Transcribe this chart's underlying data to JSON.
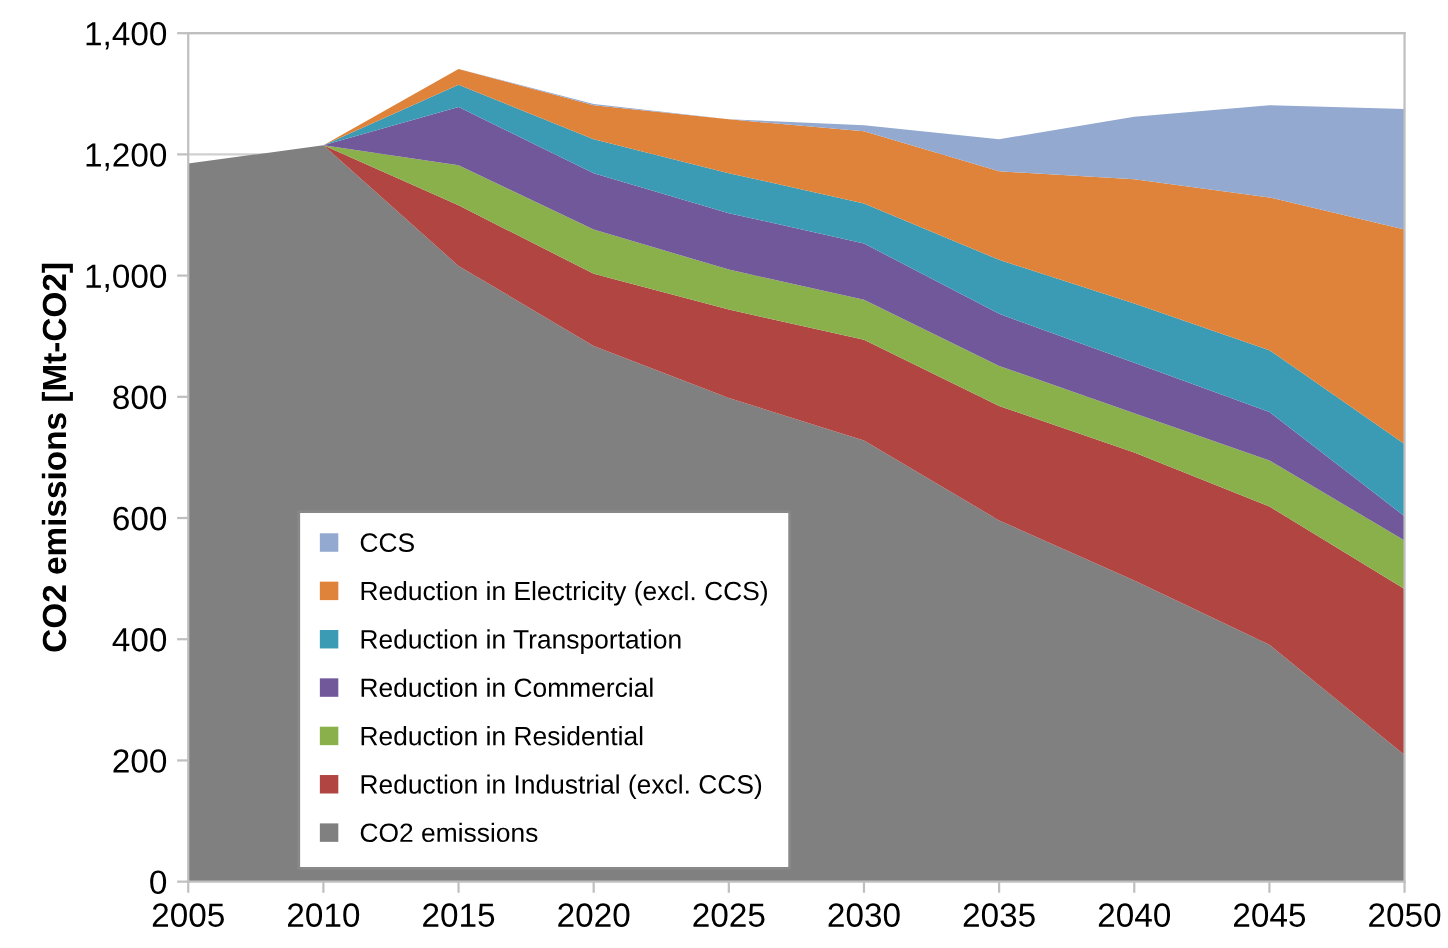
{
  "chart_data": {
    "type": "area",
    "stacked": true,
    "ylabel": "CO2 emissions [Mt-CO2]",
    "x": [
      2005,
      2010,
      2015,
      2020,
      2025,
      2030,
      2035,
      2040,
      2045,
      2050
    ],
    "xlim": [
      2005,
      2050
    ],
    "xticks": [
      2005,
      2010,
      2015,
      2020,
      2025,
      2030,
      2035,
      2040,
      2045,
      2050
    ],
    "ylim": [
      0,
      1400
    ],
    "yticks": [
      0,
      200,
      400,
      600,
      800,
      {
        "value": 1000,
        "label": "1,000"
      },
      {
        "value": 1200,
        "label": "1,200"
      },
      {
        "value": 1400,
        "label": "1,400"
      }
    ],
    "grid": "y",
    "legend": "bottom left",
    "series": [
      {
        "name": "CO2 emissions",
        "color": "#808080",
        "values": [
          1185,
          1215,
          1016,
          884,
          798,
          728,
          596,
          497,
          391,
          209
        ]
      },
      {
        "name": "Reduction in Industrial (excl. CCS)",
        "color": "#b04542",
        "values": [
          0,
          0,
          100,
          119,
          146,
          166,
          189,
          211,
          228,
          274
        ]
      },
      {
        "name": "Reduction in Residential",
        "color": "#8ab04c",
        "values": [
          0,
          0,
          66,
          73,
          66,
          66,
          66,
          65,
          76,
          80
        ]
      },
      {
        "name": "Reduction in Commercial",
        "color": "#71589a",
        "values": [
          0,
          0,
          96,
          93,
          93,
          93,
          86,
          83,
          80,
          40
        ]
      },
      {
        "name": "Reduction in Transportation",
        "color": "#3c9bb4",
        "values": [
          0,
          0,
          37,
          56,
          66,
          66,
          89,
          98,
          102,
          119
        ]
      },
      {
        "name": "Reduction in Electricity (excl. CCS)",
        "color": "#e0833a",
        "values": [
          0,
          0,
          26,
          56,
          89,
          119,
          146,
          205,
          252,
          354
        ]
      },
      {
        "name": "CCS",
        "color": "#93a9cf",
        "values": [
          0,
          0,
          0,
          2,
          0,
          10,
          53,
          103,
          152,
          199
        ]
      }
    ]
  }
}
